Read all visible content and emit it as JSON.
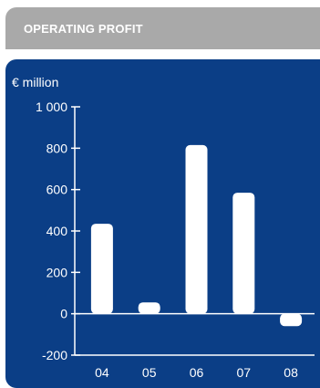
{
  "header": {
    "title": "OPERATING PROFIT"
  },
  "colors": {
    "panel": "#0b3e86",
    "header": "#a9a9a9",
    "bars": "#ffffff",
    "axis": "#ffffff"
  },
  "chart_data": {
    "type": "bar",
    "categories": [
      "04",
      "05",
      "06",
      "07",
      "08"
    ],
    "values": [
      435,
      55,
      815,
      585,
      -60
    ],
    "ylabel": "€ million",
    "ylim": [
      -200,
      1000
    ],
    "yticks": [
      -200,
      0,
      200,
      400,
      600,
      800,
      1000
    ],
    "ytick_labels": [
      "-200",
      "0",
      "200",
      "400",
      "600",
      "800",
      "1 000"
    ],
    "grid": false
  }
}
